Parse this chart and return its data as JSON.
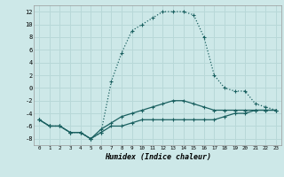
{
  "xlabel": "Humidex (Indice chaleur)",
  "background_color": "#cde8e8",
  "grid_color": "#b8d8d8",
  "line_color": "#1a6060",
  "xlim": [
    -0.5,
    23.5
  ],
  "ylim": [
    -9,
    13
  ],
  "yticks": [
    -8,
    -6,
    -4,
    -2,
    0,
    2,
    4,
    6,
    8,
    10,
    12
  ],
  "xticks": [
    0,
    1,
    2,
    3,
    4,
    5,
    6,
    7,
    8,
    9,
    10,
    11,
    12,
    13,
    14,
    15,
    16,
    17,
    18,
    19,
    20,
    21,
    22,
    23
  ],
  "series1_x": [
    0,
    1,
    2,
    3,
    4,
    5,
    6,
    7,
    8,
    9,
    10,
    11,
    12,
    13,
    14,
    15,
    16,
    17,
    18,
    19,
    20,
    21,
    22,
    23
  ],
  "series1_y": [
    -5,
    -6,
    -6,
    -7,
    -7,
    -8,
    -7,
    -6,
    -6,
    -5.5,
    -5,
    -5,
    -5,
    -5,
    -5,
    -5,
    -5,
    -5,
    -4.5,
    -4,
    -4,
    -3.5,
    -3.5,
    -3.5
  ],
  "series2_x": [
    0,
    1,
    2,
    3,
    4,
    5,
    6,
    7,
    8,
    9,
    10,
    11,
    12,
    13,
    14,
    15,
    16,
    17,
    18,
    19,
    20,
    21,
    22,
    23
  ],
  "series2_y": [
    -5,
    -6,
    -6,
    -7,
    -7,
    -8,
    -7,
    1,
    5.5,
    9,
    10,
    11,
    12,
    12,
    12,
    11.5,
    8,
    2,
    0,
    -0.5,
    -0.5,
    -2.5,
    -3,
    -3.5
  ],
  "series3_x": [
    0,
    1,
    2,
    3,
    4,
    5,
    6,
    7,
    8,
    9,
    10,
    11,
    12,
    13,
    14,
    15,
    16,
    17,
    18,
    19,
    20,
    21,
    22,
    23
  ],
  "series3_y": [
    -5,
    -6,
    -6,
    -7,
    -7,
    -8,
    -6.5,
    -5.5,
    -4.5,
    -4,
    -3.5,
    -3,
    -2.5,
    -2,
    -2,
    -2.5,
    -3,
    -3.5,
    -3.5,
    -3.5,
    -3.5,
    -3.5,
    -3.5,
    -3.5
  ]
}
